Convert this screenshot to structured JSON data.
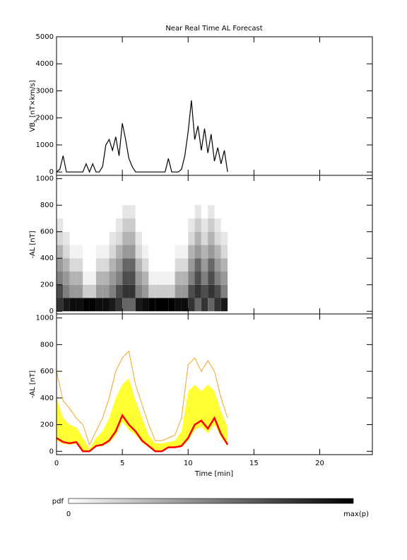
{
  "chart_data": [
    {
      "type": "line",
      "ylabel": [
        "VB",
        "s",
        " [nT×km/s]"
      ],
      "ylim": [
        -125,
        5000
      ],
      "yticks": [
        0,
        1000,
        2000,
        3000,
        4000,
        5000
      ],
      "x": [
        0,
        0.25,
        0.5,
        0.75,
        1,
        1.25,
        1.5,
        1.75,
        2,
        2.25,
        2.5,
        2.75,
        3,
        3.25,
        3.5,
        3.75,
        4,
        4.25,
        4.5,
        4.75,
        5,
        5.25,
        5.5,
        5.75,
        6,
        6.25,
        6.5,
        6.75,
        7,
        7.25,
        7.5,
        7.75,
        8,
        8.25,
        8.5,
        8.75,
        9,
        9.25,
        9.5,
        9.75,
        10,
        10.25,
        10.5,
        10.75,
        11,
        11.25,
        11.5,
        11.75,
        12,
        12.25,
        12.5,
        12.75,
        13
      ],
      "series": [
        {
          "color": "#000000",
          "values": [
            0,
            100,
            600,
            0,
            0,
            0,
            0,
            0,
            0,
            300,
            0,
            300,
            0,
            0,
            200,
            1000,
            1200,
            800,
            1300,
            600,
            1800,
            1200,
            500,
            200,
            0,
            0,
            0,
            0,
            0,
            0,
            0,
            0,
            0,
            0,
            500,
            0,
            0,
            0,
            100,
            600,
            1500,
            2650,
            1200,
            1700,
            800,
            1600,
            700,
            1400,
            400,
            900,
            300,
            800,
            0
          ]
        }
      ]
    },
    {
      "type": "heatmap",
      "ylabel": "-AL [nT]",
      "ylim": [
        -20,
        1025
      ],
      "yticks": [
        0,
        200,
        400,
        600,
        800,
        1000
      ],
      "x_edges": [
        0,
        0.5,
        1,
        1.5,
        2,
        2.5,
        3,
        3.5,
        4,
        4.5,
        5,
        5.5,
        6,
        6.5,
        7,
        7.5,
        8,
        8.5,
        9,
        9.5,
        10,
        10.5,
        11,
        11.5,
        12,
        12.5,
        13
      ],
      "y_edges": [
        0,
        100,
        200,
        300,
        400,
        500,
        600,
        700,
        800
      ],
      "z": [
        [
          0.8,
          0.7,
          0.5,
          0.4,
          0.3,
          0.15,
          0.1,
          0
        ],
        [
          0.9,
          0.5,
          0.4,
          0.3,
          0.15,
          0.1,
          0,
          0
        ],
        [
          0.95,
          0.4,
          0.3,
          0.15,
          0.05,
          0,
          0,
          0
        ],
        [
          0.95,
          0.4,
          0.3,
          0.15,
          0.05,
          0,
          0,
          0
        ],
        [
          1,
          0.2,
          0.05,
          0,
          0,
          0,
          0,
          0
        ],
        [
          1,
          0.2,
          0.05,
          0,
          0,
          0,
          0,
          0
        ],
        [
          0.95,
          0.4,
          0.3,
          0.15,
          0.05,
          0,
          0,
          0
        ],
        [
          0.95,
          0.4,
          0.3,
          0.15,
          0.05,
          0,
          0,
          0
        ],
        [
          0.9,
          0.5,
          0.4,
          0.3,
          0.15,
          0.1,
          0,
          0
        ],
        [
          0.8,
          0.7,
          0.5,
          0.4,
          0.3,
          0.15,
          0.1,
          0
        ],
        [
          0.6,
          0.8,
          0.7,
          0.6,
          0.4,
          0.3,
          0.2,
          0.1
        ],
        [
          0.6,
          0.8,
          0.7,
          0.6,
          0.4,
          0.3,
          0.2,
          0.1
        ],
        [
          0.9,
          0.5,
          0.4,
          0.3,
          0.15,
          0.1,
          0,
          0
        ],
        [
          0.95,
          0.4,
          0.3,
          0.15,
          0.05,
          0,
          0,
          0
        ],
        [
          1,
          0.2,
          0.05,
          0,
          0,
          0,
          0,
          0
        ],
        [
          1,
          0.2,
          0.05,
          0,
          0,
          0,
          0,
          0
        ],
        [
          1,
          0.2,
          0.05,
          0,
          0,
          0,
          0,
          0
        ],
        [
          1,
          0.2,
          0.05,
          0,
          0,
          0,
          0,
          0
        ],
        [
          0.95,
          0.4,
          0.3,
          0.15,
          0.05,
          0,
          0,
          0
        ],
        [
          0.95,
          0.4,
          0.3,
          0.15,
          0.05,
          0,
          0,
          0
        ],
        [
          0.8,
          0.7,
          0.5,
          0.4,
          0.3,
          0.15,
          0.1,
          0
        ],
        [
          0.6,
          0.8,
          0.7,
          0.6,
          0.4,
          0.3,
          0.2,
          0.1
        ],
        [
          0.8,
          0.7,
          0.5,
          0.4,
          0.3,
          0.15,
          0.1,
          0
        ],
        [
          0.6,
          0.8,
          0.7,
          0.6,
          0.4,
          0.3,
          0.2,
          0.1
        ],
        [
          0.8,
          0.7,
          0.5,
          0.4,
          0.3,
          0.15,
          0.1,
          0
        ],
        [
          0.9,
          0.5,
          0.4,
          0.3,
          0.15,
          0.1,
          0,
          0
        ]
      ]
    },
    {
      "type": "band",
      "ylabel": "-AL [nT]",
      "xlabel": "Time [min]",
      "xlim": [
        0,
        24
      ],
      "xticks": [
        0,
        5,
        10,
        15,
        20
      ],
      "ylim": [
        -25,
        1030
      ],
      "yticks": [
        0,
        200,
        400,
        600,
        800,
        1000
      ],
      "x": [
        0,
        0.5,
        1,
        1.5,
        2,
        2.5,
        3,
        3.5,
        4,
        4.5,
        5,
        5.5,
        6,
        6.5,
        7,
        7.5,
        8,
        8.5,
        9,
        9.5,
        10,
        10.5,
        11,
        11.5,
        12,
        12.5,
        13
      ],
      "band": {
        "color": "#ffff33",
        "lower": [
          80,
          55,
          50,
          55,
          0,
          0,
          30,
          40,
          65,
          120,
          220,
          160,
          120,
          65,
          30,
          0,
          0,
          25,
          25,
          30,
          80,
          160,
          185,
          135,
          200,
          105,
          40
        ],
        "upper": [
          400,
          250,
          200,
          180,
          100,
          20,
          100,
          150,
          250,
          400,
          500,
          550,
          380,
          250,
          120,
          60,
          60,
          70,
          80,
          150,
          450,
          500,
          450,
          500,
          450,
          300,
          180
        ]
      },
      "series": [
        {
          "color": "#f5a623",
          "values": [
            600,
            380,
            320,
            250,
            200,
            50,
            150,
            250,
            400,
            600,
            700,
            750,
            500,
            350,
            200,
            80,
            80,
            100,
            120,
            250,
            650,
            700,
            600,
            680,
            600,
            400,
            250
          ]
        },
        {
          "color": "#ff0000",
          "values": [
            100,
            70,
            60,
            70,
            0,
            0,
            40,
            50,
            80,
            150,
            270,
            200,
            150,
            80,
            40,
            0,
            0,
            30,
            30,
            40,
            100,
            200,
            230,
            170,
            250,
            130,
            50
          ]
        }
      ]
    }
  ],
  "title": "Near Real Time AL Forecast",
  "colorbar": {
    "label": "pdf",
    "min_label": "0",
    "max_label": "max(p)"
  }
}
